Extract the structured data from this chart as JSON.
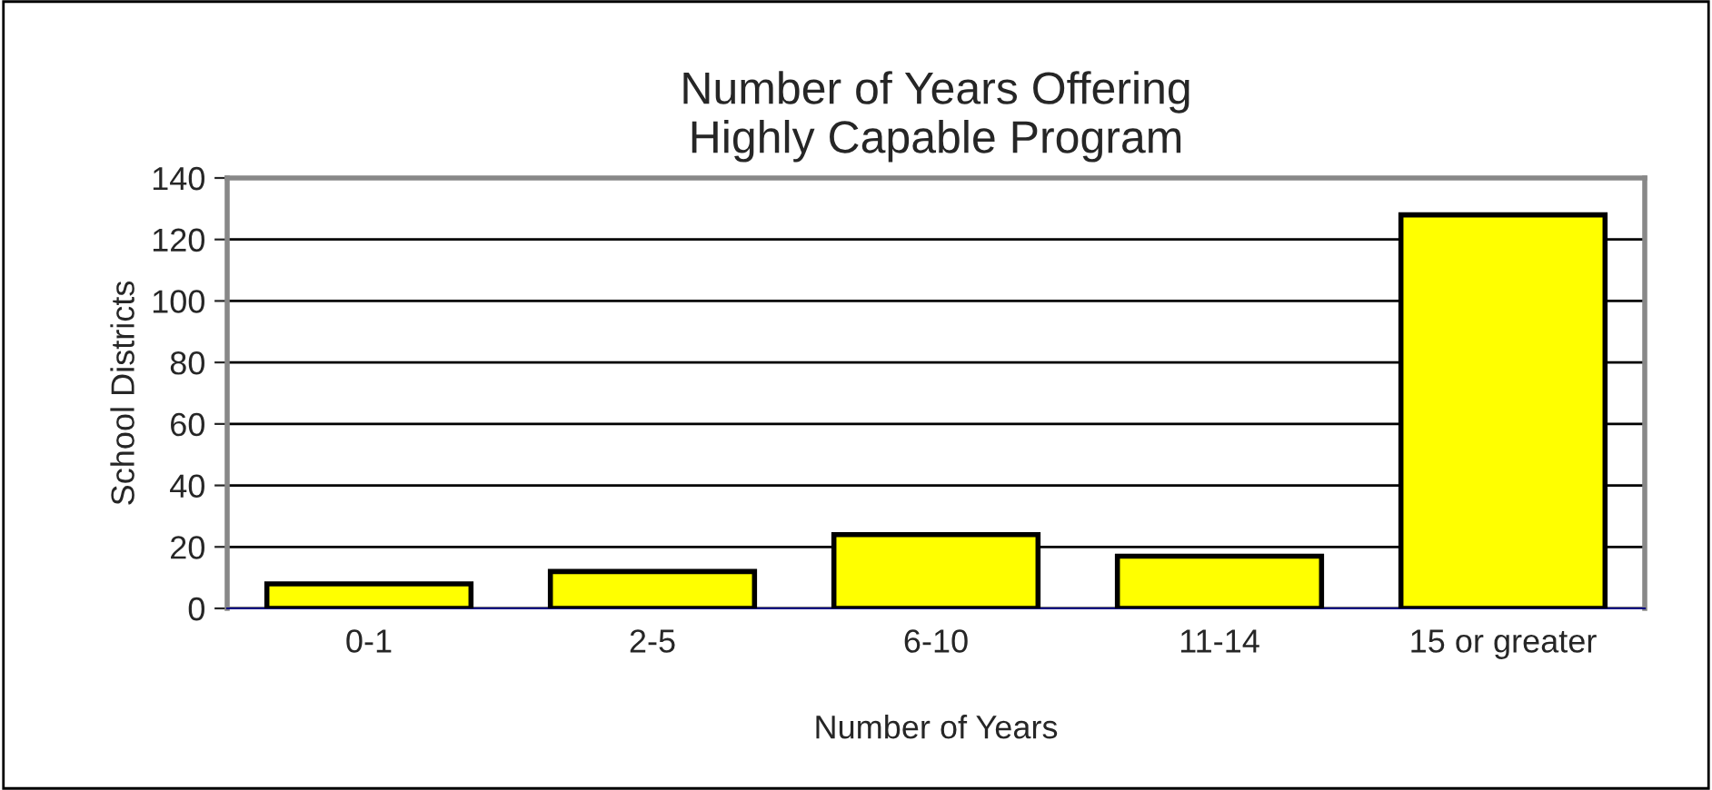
{
  "chart_data": {
    "type": "bar",
    "title": "Number of Years Offering\nHighly Capable Program",
    "xlabel": "Number of Years",
    "ylabel": "School Districts",
    "categories": [
      "0-1",
      "2-5",
      "6-10",
      "11-14",
      "15 or greater"
    ],
    "values": [
      8,
      12,
      24,
      17,
      128
    ],
    "color": "#ffff00",
    "ylim": [
      0,
      140
    ],
    "yticks": [
      0,
      20,
      40,
      60,
      80,
      100,
      120,
      140
    ],
    "grid": "y"
  }
}
